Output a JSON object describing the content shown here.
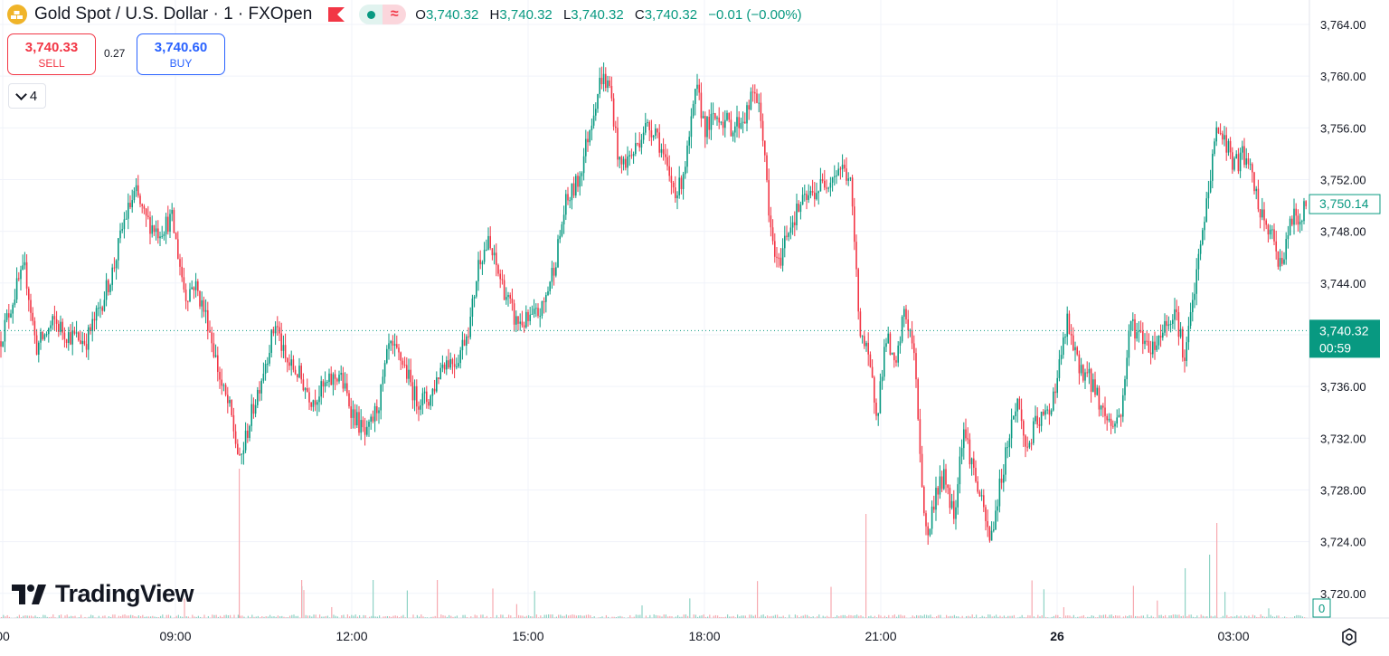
{
  "header": {
    "title": "Gold Spot / U.S. Dollar · 1 · FXOpen",
    "symbol_icon": "gold-bars-icon",
    "flag_icon": "flag-icon",
    "status_icons": [
      "market-open-dot-icon",
      "delayed-wave-icon"
    ],
    "ohlc": [
      {
        "key": "O",
        "value": "3,740.32"
      },
      {
        "key": "H",
        "value": "3,740.32"
      },
      {
        "key": "L",
        "value": "3,740.32"
      },
      {
        "key": "C",
        "value": "3,740.32"
      }
    ],
    "change": "−0.01 (−0.00%)"
  },
  "trade": {
    "sell_price": "3,740.33",
    "sell_label": "SELL",
    "spread": "0.27",
    "buy_price": "3,740.60",
    "buy_label": "BUY"
  },
  "indicators_toggle": {
    "count": "4"
  },
  "branding": {
    "logo_text": "TradingView"
  },
  "colors": {
    "up": "#089981",
    "down": "#f23645",
    "grid": "#f0f3fa",
    "text": "#131722"
  },
  "chart_data": {
    "type": "candlestick",
    "interval": "1",
    "x_ticks": [
      "00",
      "09:00",
      "12:00",
      "15:00",
      "18:00",
      "21:00",
      "26",
      "03:00"
    ],
    "y_ticks": [
      "3,764.00",
      "3,760.00",
      "3,756.00",
      "3,752.00",
      "3,748.00",
      "3,744.00",
      "3,740.00",
      "3,736.00",
      "3,732.00",
      "3,728.00",
      "3,724.00",
      "3,720.00"
    ],
    "ylim": [
      3719,
      3765
    ],
    "close_path": [
      [
        0,
        3739.5
      ],
      [
        20,
        3744
      ],
      [
        28,
        3745
      ],
      [
        40,
        3739
      ],
      [
        60,
        3741
      ],
      [
        75,
        3740
      ],
      [
        95,
        3739.5
      ],
      [
        110,
        3742
      ],
      [
        125,
        3745
      ],
      [
        138,
        3749
      ],
      [
        150,
        3751
      ],
      [
        160,
        3749
      ],
      [
        175,
        3748
      ],
      [
        190,
        3749
      ],
      [
        205,
        3743
      ],
      [
        215,
        3744
      ],
      [
        230,
        3741
      ],
      [
        245,
        3736
      ],
      [
        255,
        3734
      ],
      [
        265,
        3730
      ],
      [
        275,
        3733
      ],
      [
        290,
        3737
      ],
      [
        305,
        3741
      ],
      [
        315,
        3738
      ],
      [
        330,
        3737
      ],
      [
        345,
        3735
      ],
      [
        360,
        3736
      ],
      [
        375,
        3737
      ],
      [
        390,
        3734
      ],
      [
        405,
        3732
      ],
      [
        420,
        3735
      ],
      [
        430,
        3739
      ],
      [
        445,
        3738
      ],
      [
        460,
        3735
      ],
      [
        475,
        3735
      ],
      [
        490,
        3738
      ],
      [
        505,
        3738
      ],
      [
        520,
        3741
      ],
      [
        530,
        3746
      ],
      [
        540,
        3747
      ],
      [
        555,
        3744
      ],
      [
        570,
        3741
      ],
      [
        585,
        3741
      ],
      [
        600,
        3742
      ],
      [
        615,
        3746
      ],
      [
        625,
        3750
      ],
      [
        640,
        3752
      ],
      [
        655,
        3757
      ],
      [
        665,
        3760
      ],
      [
        675,
        3759
      ],
      [
        685,
        3753
      ],
      [
        700,
        3754
      ],
      [
        712,
        3756
      ],
      [
        725,
        3756
      ],
      [
        740,
        3752
      ],
      [
        750,
        3751
      ],
      [
        760,
        3754
      ],
      [
        770,
        3759
      ],
      [
        780,
        3756
      ],
      [
        795,
        3757
      ],
      [
        810,
        3756
      ],
      [
        825,
        3757
      ],
      [
        835,
        3759
      ],
      [
        845,
        3755
      ],
      [
        850,
        3749
      ],
      [
        860,
        3745
      ],
      [
        870,
        3748
      ],
      [
        885,
        3750
      ],
      [
        900,
        3751
      ],
      [
        915,
        3752
      ],
      [
        930,
        3753
      ],
      [
        940,
        3752
      ],
      [
        945,
        3747
      ],
      [
        950,
        3741
      ],
      [
        960,
        3738
      ],
      [
        970,
        3734
      ],
      [
        980,
        3740
      ],
      [
        990,
        3737
      ],
      [
        1000,
        3742
      ],
      [
        1010,
        3739
      ],
      [
        1015,
        3734
      ],
      [
        1020,
        3728
      ],
      [
        1025,
        3724
      ],
      [
        1035,
        3728
      ],
      [
        1045,
        3729
      ],
      [
        1055,
        3726
      ],
      [
        1065,
        3733
      ],
      [
        1075,
        3730
      ],
      [
        1085,
        3727
      ],
      [
        1095,
        3724
      ],
      [
        1105,
        3728
      ],
      [
        1115,
        3732
      ],
      [
        1125,
        3735
      ],
      [
        1135,
        3731
      ],
      [
        1145,
        3733
      ],
      [
        1160,
        3734
      ],
      [
        1170,
        3737
      ],
      [
        1180,
        3741
      ],
      [
        1190,
        3738
      ],
      [
        1200,
        3737
      ],
      [
        1210,
        3736
      ],
      [
        1220,
        3734
      ],
      [
        1230,
        3733
      ],
      [
        1240,
        3734
      ],
      [
        1250,
        3741
      ],
      [
        1260,
        3740
      ],
      [
        1275,
        3739
      ],
      [
        1290,
        3741
      ],
      [
        1300,
        3742
      ],
      [
        1310,
        3738
      ],
      [
        1320,
        3743
      ],
      [
        1328,
        3747
      ],
      [
        1338,
        3752
      ],
      [
        1345,
        3756
      ],
      [
        1355,
        3755
      ],
      [
        1365,
        3753
      ],
      [
        1375,
        3754
      ],
      [
        1385,
        3752
      ],
      [
        1395,
        3749
      ],
      [
        1405,
        3748
      ],
      [
        1412,
        3746
      ],
      [
        1420,
        3746
      ],
      [
        1428,
        3749
      ],
      [
        1438,
        3749
      ],
      [
        1445,
        3750
      ]
    ],
    "last_price": "3,740.32",
    "countdown": "00:59",
    "crosshair_price": "3,750.14",
    "volume_label": "0"
  }
}
